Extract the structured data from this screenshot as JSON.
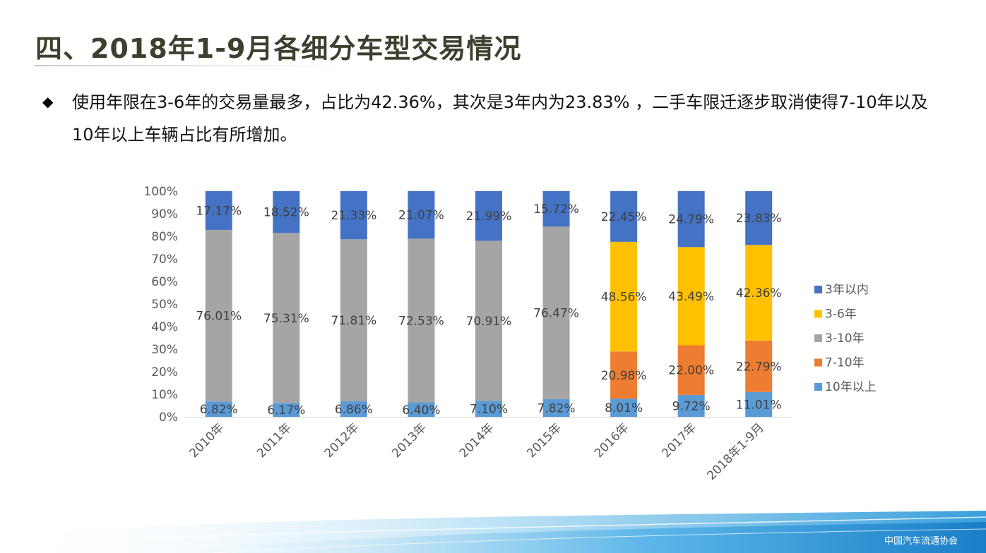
{
  "header": {
    "title": "四、2018年1-9月各细分车型交易情况",
    "bullet_icon": "diamond-bullet-icon",
    "description": "使用年限在3-6年的交易量最多，占比为42.36%，其次是3年内为23.83% ，二手车限迁逐步取消使得7-10年以及10年以上车辆占比有所增加。"
  },
  "footer": {
    "logo_text": "中国汽车流通协会"
  },
  "chart_data": {
    "type": "bar",
    "stacked": true,
    "categories": [
      "2010年",
      "2011年",
      "2012年",
      "2013年",
      "2014年",
      "2015年",
      "2016年",
      "2017年",
      "2018年1-9月"
    ],
    "yticks": [
      "0%",
      "10%",
      "20%",
      "30%",
      "40%",
      "50%",
      "60%",
      "70%",
      "80%",
      "90%",
      "100%"
    ],
    "ylim": [
      0,
      100
    ],
    "grid": false,
    "legend_position": "right",
    "series": [
      {
        "name": "10年以上",
        "color": "#5b9bd5",
        "values": [
          6.82,
          6.17,
          6.86,
          6.4,
          7.1,
          7.82,
          8.01,
          9.72,
          11.01
        ],
        "labels": [
          "6.82%",
          "6.17%",
          "6.86%",
          "6.40%",
          "7.10%",
          "7.82%",
          "8.01%",
          "9.72%",
          "11.01%"
        ]
      },
      {
        "name": "7-10年",
        "color": "#ed7d31",
        "values": [
          0,
          0,
          0,
          0,
          0,
          0,
          20.98,
          22.0,
          22.79
        ],
        "labels": [
          "",
          "",
          "",
          "",
          "",
          "",
          "20.98%",
          "22.00%",
          "22.79%"
        ]
      },
      {
        "name": "3-10年",
        "color": "#a5a5a5",
        "values": [
          76.01,
          75.31,
          71.81,
          72.53,
          70.91,
          76.47,
          0,
          0,
          0
        ],
        "labels": [
          "76.01%",
          "75.31%",
          "71.81%",
          "72.53%",
          "70.91%",
          "76.47%",
          "",
          "",
          ""
        ]
      },
      {
        "name": "3-6年",
        "color": "#ffc000",
        "values": [
          0,
          0,
          0,
          0,
          0,
          0,
          48.56,
          43.49,
          42.36
        ],
        "labels": [
          "",
          "",
          "",
          "",
          "",
          "",
          "48.56%",
          "43.49%",
          "42.36%"
        ]
      },
      {
        "name": "3年以内",
        "color": "#4472c4",
        "values": [
          17.17,
          18.52,
          21.33,
          21.07,
          21.99,
          15.72,
          22.45,
          24.79,
          23.83
        ],
        "labels": [
          "17.17%",
          "18.52%",
          "21.33%",
          "21.07%",
          "21.99%",
          "15.72%",
          "22.45%",
          "24.79%",
          "23.83%"
        ]
      }
    ],
    "legend_order": [
      "3年以内",
      "3-6年",
      "3-10年",
      "7-10年",
      "10年以上"
    ]
  }
}
